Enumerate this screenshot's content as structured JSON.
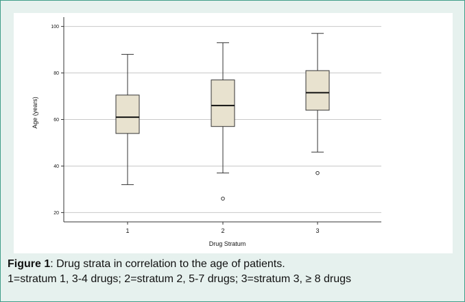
{
  "figure": {
    "label": "Figure 1",
    "caption_text": ": Drug strata in correlation to the age of patients.",
    "caption_line2": "1=stratum 1, 3-4 drugs; 2=stratum 2, 5-7 drugs; 3=stratum 3, ≥ 8 drugs"
  },
  "colors": {
    "frame_border": "#3f9c88",
    "frame_background": "#e6f1ee",
    "box_fill": "#e8e2cf",
    "grid": "#c8c8c8"
  },
  "chart_data": {
    "type": "boxplot",
    "xlabel": "Drug Stratum",
    "ylabel": "Age (years)",
    "ylim": [
      16,
      104
    ],
    "yticks": [
      20,
      40,
      60,
      80,
      100
    ],
    "grid": true,
    "categories": [
      "1",
      "2",
      "3"
    ],
    "boxes": [
      {
        "category": "1",
        "whisker_low": 32,
        "q1": 54,
        "median": 61,
        "q3": 70.5,
        "whisker_high": 88,
        "outliers": []
      },
      {
        "category": "2",
        "whisker_low": 37,
        "q1": 57,
        "median": 66,
        "q3": 77,
        "whisker_high": 93,
        "outliers": [
          26
        ]
      },
      {
        "category": "3",
        "whisker_low": 46,
        "q1": 64,
        "median": 71.5,
        "q3": 81,
        "whisker_high": 97,
        "outliers": [
          37
        ]
      }
    ]
  }
}
